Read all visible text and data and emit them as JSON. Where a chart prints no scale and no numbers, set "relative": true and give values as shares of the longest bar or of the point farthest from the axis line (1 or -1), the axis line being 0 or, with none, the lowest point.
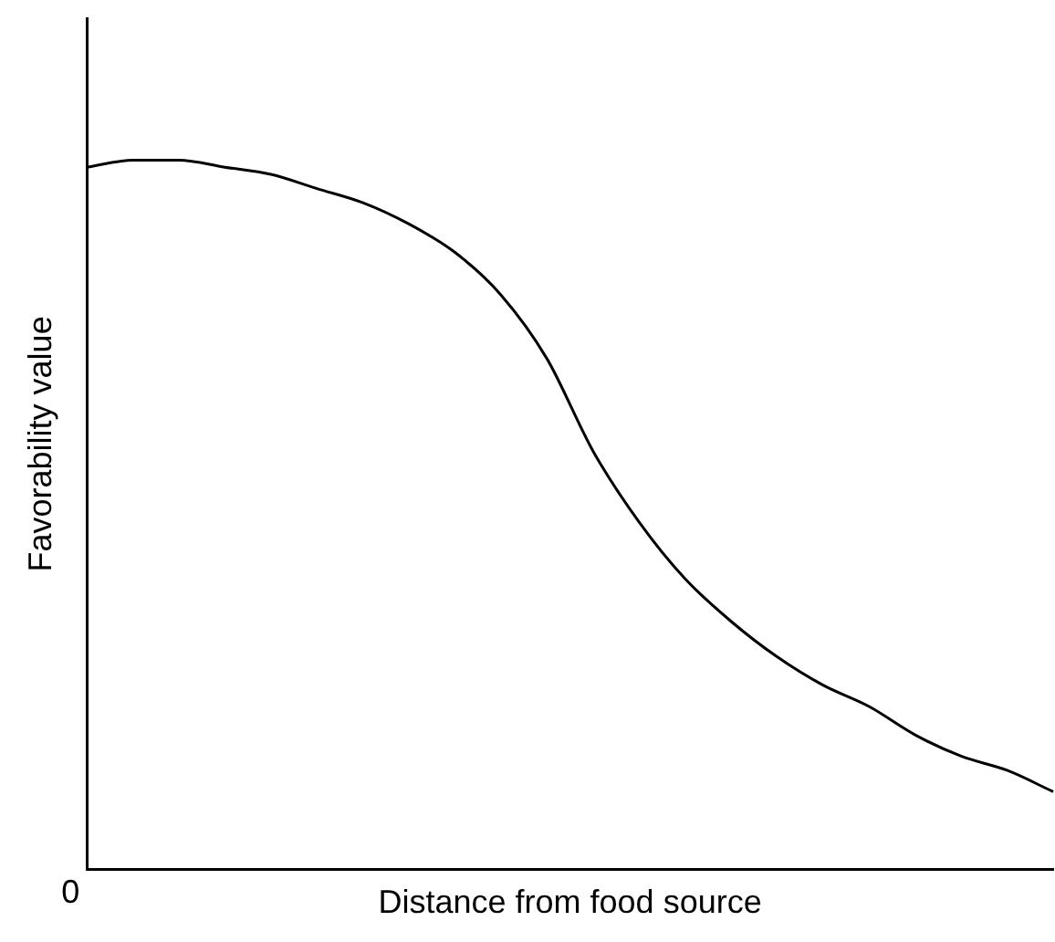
{
  "chart_data": {
    "type": "line",
    "relative": true,
    "xlabel": "Distance from food source",
    "ylabel": "Favorability value",
    "annotations": [
      "0"
    ],
    "categories": [
      null,
      null,
      null,
      null,
      null,
      null,
      null,
      null,
      null,
      null,
      null,
      null,
      null,
      null,
      null,
      null,
      null,
      null,
      null,
      null,
      null,
      null
    ],
    "series": [
      {
        "color": "#000000",
        "values": [
          0.99,
          1.0,
          1.0,
          0.99,
          0.98,
          0.96,
          0.94,
          0.91,
          0.87,
          0.81,
          0.72,
          0.59,
          0.49,
          0.41,
          0.35,
          0.3,
          0.26,
          0.23,
          0.19,
          0.16,
          0.14,
          0.11
        ]
      }
    ],
    "marker": "none",
    "line_style": "solid",
    "grid": false,
    "legend": false,
    "tick_labels": false
  }
}
